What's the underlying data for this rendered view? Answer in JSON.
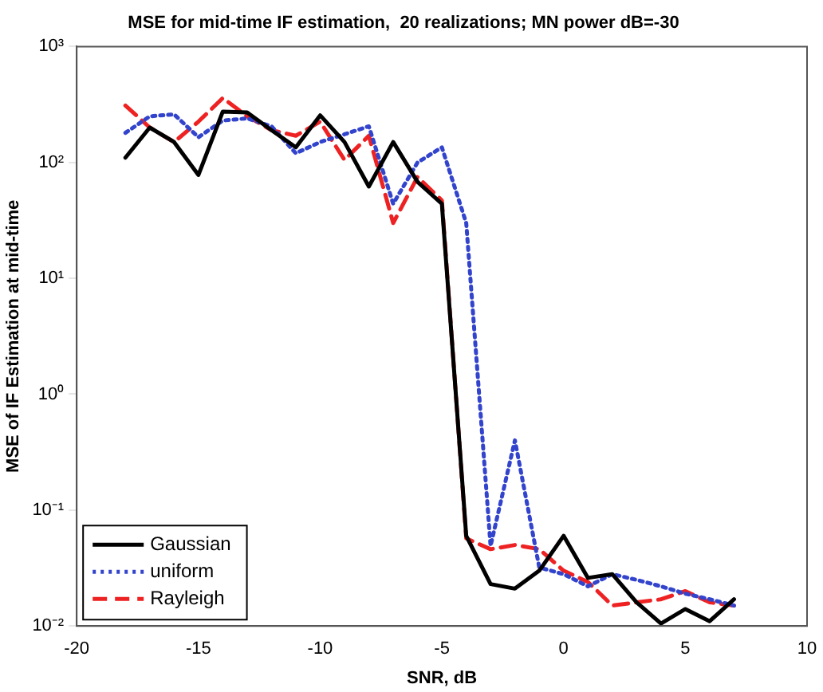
{
  "chart_data": {
    "type": "line",
    "title": "MSE for mid-time IF estimation,  20 realizations; MN power dB=-30",
    "xlabel": "SNR, dB",
    "ylabel": "MSE of IF Estimation at mid-time",
    "x": [
      -18,
      -17,
      -16,
      -15,
      -14,
      -13,
      -12,
      -11,
      -10,
      -9,
      -8,
      -7,
      -6,
      -5,
      -4,
      -3,
      -2,
      -1,
      0,
      1,
      2,
      3,
      4,
      5,
      6,
      7
    ],
    "series": [
      {
        "name": "Gaussian",
        "color": "#000000",
        "line_style": "solid",
        "values": [
          110,
          200,
          150,
          78,
          275,
          270,
          190,
          135,
          255,
          150,
          62,
          150,
          68,
          44,
          0.06,
          0.023,
          0.021,
          0.03,
          0.06,
          0.026,
          0.028,
          0.016,
          0.0105,
          0.014,
          0.011,
          0.017
        ]
      },
      {
        "name": "uniform",
        "color": "#3344cc",
        "line_style": "dotted",
        "values": [
          180,
          250,
          260,
          165,
          230,
          240,
          205,
          120,
          150,
          175,
          205,
          44,
          100,
          135,
          30,
          0.049,
          0.4,
          0.032,
          0.028,
          0.022,
          0.028,
          0.025,
          0.022,
          0.019,
          0.017,
          0.015
        ]
      },
      {
        "name": "Rayleigh",
        "color": "#ee2222",
        "line_style": "dashed",
        "values": [
          310,
          200,
          150,
          225,
          360,
          250,
          190,
          170,
          225,
          105,
          170,
          30,
          75,
          47,
          0.057,
          0.046,
          0.05,
          0.046,
          0.03,
          0.024,
          0.015,
          0.016,
          0.017,
          0.02,
          0.016,
          0.015
        ]
      }
    ],
    "xlim": [
      -20,
      10
    ],
    "xticks": [
      -20,
      -15,
      -10,
      -5,
      0,
      5,
      10
    ],
    "ylim": [
      0.01,
      1000
    ],
    "yticks": [
      {
        "value": 0.01,
        "label": "10⁻²"
      },
      {
        "value": 0.1,
        "label": "10⁻¹"
      },
      {
        "value": 1,
        "label": "10⁰"
      },
      {
        "value": 10,
        "label": "10¹"
      },
      {
        "value": 100,
        "label": "10²"
      },
      {
        "value": 1000,
        "label": "10³"
      }
    ],
    "log": "y",
    "grid": false,
    "legend": "bottom left",
    "marker": "none"
  }
}
